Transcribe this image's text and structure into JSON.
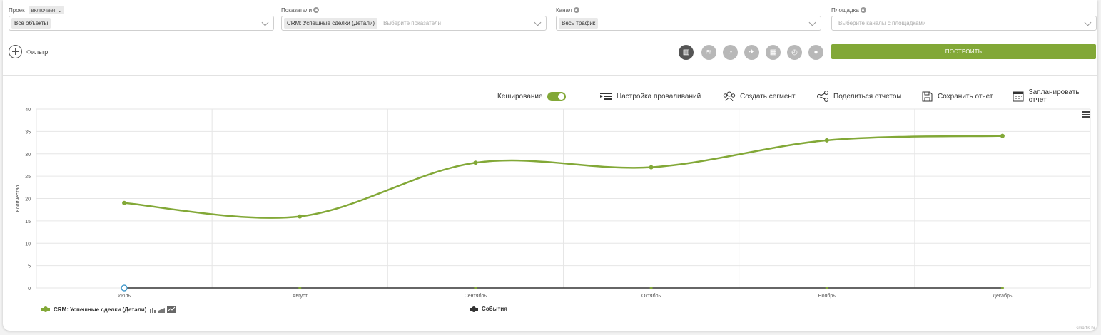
{
  "filters": {
    "project": {
      "label": "Проект",
      "mode": "включает",
      "tag": "Все объекты",
      "placeholder": ""
    },
    "metrics": {
      "label": "Показатели",
      "tag": "CRM: Успешные сделки (Детали)",
      "placeholder": "Выберите показатели"
    },
    "channel": {
      "label": "Канал",
      "tag": "Весь трафик",
      "placeholder": ""
    },
    "platform": {
      "label": "Площадка",
      "tag": "",
      "placeholder": "Выберите каналы с площадками"
    },
    "filter_button": "Фильтр"
  },
  "view_types": [
    "bar-chart-icon",
    "area-icon",
    "pie-icon",
    "map-icon",
    "table-icon",
    "gauge-icon",
    "drop-icon"
  ],
  "build_button": "ПОСТРОИТЬ",
  "toolbar": {
    "caching": "Кеширование",
    "drilldown": "Настройка проваливаний",
    "segment": "Создать сегмент",
    "share": "Поделиться отчетом",
    "save": "Сохранить отчет",
    "schedule": "Запланировать отчет"
  },
  "colors": {
    "accent": "#82a837",
    "dark": "#333333"
  },
  "chart_data": {
    "type": "line",
    "categories": [
      "Июль",
      "Август",
      "Сентябрь",
      "Октябрь",
      "Ноябрь",
      "Декабрь"
    ],
    "ylabel": "Количество",
    "ylim": [
      0,
      40
    ],
    "yticks": [
      0,
      5,
      10,
      15,
      20,
      25,
      30,
      35,
      40
    ],
    "grid": true,
    "legend_position": "bottom",
    "series": [
      {
        "name": "CRM: Успешные сделки (Детали)",
        "values": [
          19,
          16,
          28,
          27,
          33,
          34
        ],
        "color": "#82a837"
      },
      {
        "name": "События",
        "values": [
          0,
          0,
          0,
          0,
          0,
          0
        ],
        "color": "#333333"
      }
    ]
  },
  "credit": "smartis.bi"
}
